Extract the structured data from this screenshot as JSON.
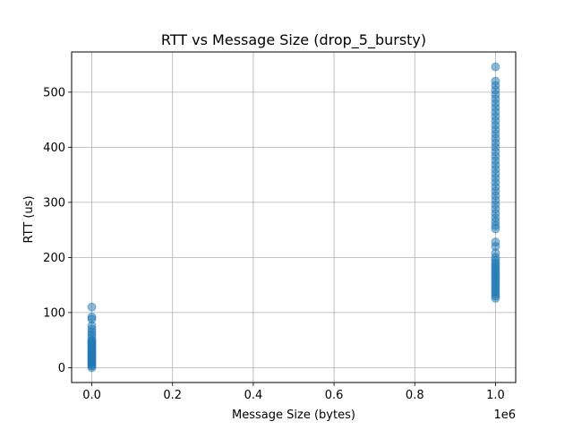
{
  "chart_data": {
    "type": "scatter",
    "title": "RTT vs Message Size (drop_5_bursty)",
    "xlabel": "Message Size (bytes)",
    "ylabel": "RTT (us)",
    "x_offset_label": "1e6",
    "xlim": [
      -50000,
      1050000
    ],
    "ylim": [
      -27,
      573
    ],
    "grid": true,
    "x_ticks": [
      0,
      200000,
      400000,
      600000,
      800000,
      1000000
    ],
    "x_tick_labels": [
      "0.0",
      "0.2",
      "0.4",
      "0.6",
      "0.8",
      "1.0"
    ],
    "y_ticks": [
      0,
      100,
      200,
      300,
      400,
      500
    ],
    "y_tick_labels": [
      "0",
      "100",
      "200",
      "300",
      "400",
      "500"
    ],
    "marker_color": "#1f77b4",
    "marker_alpha": 0.5,
    "series": [
      {
        "values": [
          {
            "x": 0,
            "y": 0
          },
          {
            "x": 0,
            "y": 3
          },
          {
            "x": 0,
            "y": 5
          },
          {
            "x": 0,
            "y": 8
          },
          {
            "x": 0,
            "y": 10
          },
          {
            "x": 0,
            "y": 12
          },
          {
            "x": 0,
            "y": 15
          },
          {
            "x": 0,
            "y": 18
          },
          {
            "x": 0,
            "y": 20
          },
          {
            "x": 0,
            "y": 22
          },
          {
            "x": 0,
            "y": 25
          },
          {
            "x": 0,
            "y": 28
          },
          {
            "x": 0,
            "y": 30
          },
          {
            "x": 0,
            "y": 33
          },
          {
            "x": 0,
            "y": 35
          },
          {
            "x": 0,
            "y": 38
          },
          {
            "x": 0,
            "y": 40
          },
          {
            "x": 0,
            "y": 43
          },
          {
            "x": 0,
            "y": 45
          },
          {
            "x": 0,
            "y": 48
          },
          {
            "x": 0,
            "y": 50
          },
          {
            "x": 0,
            "y": 55
          },
          {
            "x": 0,
            "y": 60
          },
          {
            "x": 0,
            "y": 65
          },
          {
            "x": 0,
            "y": 70
          },
          {
            "x": 0,
            "y": 76
          },
          {
            "x": 0,
            "y": 88
          },
          {
            "x": 0,
            "y": 92
          },
          {
            "x": 0,
            "y": 110
          },
          {
            "x": 1000000,
            "y": 126
          },
          {
            "x": 1000000,
            "y": 130
          },
          {
            "x": 1000000,
            "y": 134
          },
          {
            "x": 1000000,
            "y": 138
          },
          {
            "x": 1000000,
            "y": 142
          },
          {
            "x": 1000000,
            "y": 146
          },
          {
            "x": 1000000,
            "y": 150
          },
          {
            "x": 1000000,
            "y": 154
          },
          {
            "x": 1000000,
            "y": 158
          },
          {
            "x": 1000000,
            "y": 162
          },
          {
            "x": 1000000,
            "y": 166
          },
          {
            "x": 1000000,
            "y": 170
          },
          {
            "x": 1000000,
            "y": 174
          },
          {
            "x": 1000000,
            "y": 178
          },
          {
            "x": 1000000,
            "y": 182
          },
          {
            "x": 1000000,
            "y": 186
          },
          {
            "x": 1000000,
            "y": 190
          },
          {
            "x": 1000000,
            "y": 195
          },
          {
            "x": 1000000,
            "y": 200
          },
          {
            "x": 1000000,
            "y": 208
          },
          {
            "x": 1000000,
            "y": 220
          },
          {
            "x": 1000000,
            "y": 228
          },
          {
            "x": 1000000,
            "y": 252
          },
          {
            "x": 1000000,
            "y": 258
          },
          {
            "x": 1000000,
            "y": 265
          },
          {
            "x": 1000000,
            "y": 272
          },
          {
            "x": 1000000,
            "y": 280
          },
          {
            "x": 1000000,
            "y": 288
          },
          {
            "x": 1000000,
            "y": 296
          },
          {
            "x": 1000000,
            "y": 304
          },
          {
            "x": 1000000,
            "y": 312
          },
          {
            "x": 1000000,
            "y": 320
          },
          {
            "x": 1000000,
            "y": 328
          },
          {
            "x": 1000000,
            "y": 336
          },
          {
            "x": 1000000,
            "y": 344
          },
          {
            "x": 1000000,
            "y": 352
          },
          {
            "x": 1000000,
            "y": 360
          },
          {
            "x": 1000000,
            "y": 368
          },
          {
            "x": 1000000,
            "y": 376
          },
          {
            "x": 1000000,
            "y": 384
          },
          {
            "x": 1000000,
            "y": 392
          },
          {
            "x": 1000000,
            "y": 400
          },
          {
            "x": 1000000,
            "y": 408
          },
          {
            "x": 1000000,
            "y": 416
          },
          {
            "x": 1000000,
            "y": 424
          },
          {
            "x": 1000000,
            "y": 432
          },
          {
            "x": 1000000,
            "y": 440
          },
          {
            "x": 1000000,
            "y": 448
          },
          {
            "x": 1000000,
            "y": 456
          },
          {
            "x": 1000000,
            "y": 464
          },
          {
            "x": 1000000,
            "y": 472
          },
          {
            "x": 1000000,
            "y": 480
          },
          {
            "x": 1000000,
            "y": 488
          },
          {
            "x": 1000000,
            "y": 496
          },
          {
            "x": 1000000,
            "y": 504
          },
          {
            "x": 1000000,
            "y": 512
          },
          {
            "x": 1000000,
            "y": 520
          },
          {
            "x": 1000000,
            "y": 546
          }
        ]
      }
    ]
  }
}
